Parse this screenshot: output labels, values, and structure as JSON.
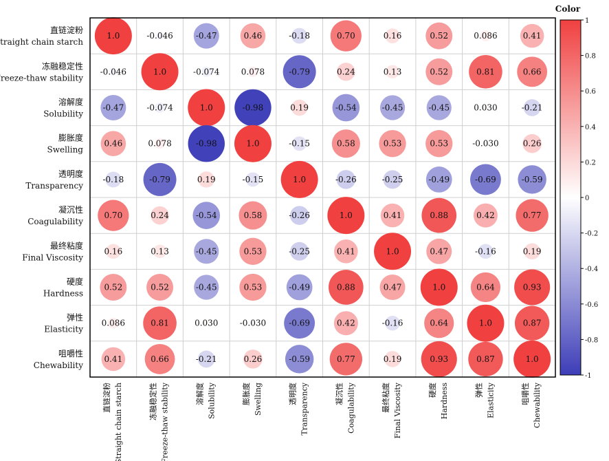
{
  "chart_data": {
    "type": "heatmap",
    "labels": [
      {
        "cn": "直链淀粉",
        "en": "Straight chain starch"
      },
      {
        "cn": "冻融稳定性",
        "en": "Freeze-thaw stability"
      },
      {
        "cn": "溶解度",
        "en": "Solubility"
      },
      {
        "cn": "膨胀度",
        "en": "Swelling"
      },
      {
        "cn": "透明度",
        "en": "Transparency"
      },
      {
        "cn": "凝沉性",
        "en": "Coagulability"
      },
      {
        "cn": "最终粘度",
        "en": "Final Viscosity"
      },
      {
        "cn": "硬度",
        "en": "Hardness"
      },
      {
        "cn": "弹性",
        "en": "Elasticity"
      },
      {
        "cn": "咀嚼性",
        "en": "Chewability"
      }
    ],
    "values": [
      [
        1.0,
        -0.046,
        -0.47,
        0.46,
        -0.18,
        0.7,
        0.16,
        0.52,
        0.086,
        0.41
      ],
      [
        -0.046,
        1.0,
        -0.074,
        0.078,
        -0.79,
        0.24,
        0.13,
        0.52,
        0.81,
        0.66
      ],
      [
        -0.47,
        -0.074,
        1.0,
        -0.98,
        0.19,
        -0.54,
        -0.45,
        -0.45,
        0.03,
        -0.21
      ],
      [
        0.46,
        0.078,
        -0.98,
        1.0,
        -0.15,
        0.58,
        0.53,
        0.53,
        -0.03,
        0.26
      ],
      [
        -0.18,
        -0.79,
        0.19,
        -0.15,
        1.0,
        -0.26,
        -0.25,
        -0.49,
        -0.69,
        -0.59
      ],
      [
        0.7,
        0.24,
        -0.54,
        0.58,
        -0.26,
        1.0,
        0.41,
        0.88,
        0.42,
        0.77
      ],
      [
        0.16,
        0.13,
        -0.45,
        0.53,
        -0.25,
        0.41,
        1.0,
        0.47,
        -0.16,
        0.19
      ],
      [
        0.52,
        0.52,
        -0.45,
        0.53,
        -0.49,
        0.88,
        0.47,
        1.0,
        0.64,
        0.93
      ],
      [
        0.086,
        0.81,
        0.03,
        -0.03,
        -0.69,
        0.42,
        -0.16,
        0.64,
        1.0,
        0.87
      ],
      [
        0.41,
        0.66,
        -0.21,
        0.26,
        -0.59,
        0.77,
        0.19,
        0.93,
        0.87,
        1.0
      ]
    ],
    "value_labels": [
      [
        "1.0",
        "-0.046",
        "-0.47",
        "0.46",
        "-0.18",
        "0.70",
        "0.16",
        "0.52",
        "0.086",
        "0.41"
      ],
      [
        "-0.046",
        "1.0",
        "-0.074",
        "0.078",
        "-0.79",
        "0.24",
        "0.13",
        "0.52",
        "0.81",
        "0.66"
      ],
      [
        "-0.47",
        "-0.074",
        "1.0",
        "-0.98",
        "0.19",
        "-0.54",
        "-0.45",
        "-0.45",
        "0.030",
        "-0.21"
      ],
      [
        "0.46",
        "0.078",
        "-0.98",
        "1.0",
        "-0.15",
        "0.58",
        "0.53",
        "0.53",
        "-0.030",
        "0.26"
      ],
      [
        "-0.18",
        "-0.79",
        "0.19",
        "-0.15",
        "1.0",
        "-0.26",
        "-0.25",
        "-0.49",
        "-0.69",
        "-0.59"
      ],
      [
        "0.70",
        "0.24",
        "-0.54",
        "0.58",
        "-0.26",
        "1.0",
        "0.41",
        "0.88",
        "0.42",
        "0.77"
      ],
      [
        "0.16",
        "0.13",
        "-0.45",
        "0.53",
        "-0.25",
        "0.41",
        "1.0",
        "0.47",
        "-0.16",
        "0.19"
      ],
      [
        "0.52",
        "0.52",
        "-0.45",
        "0.53",
        "-0.49",
        "0.88",
        "0.47",
        "1.0",
        "0.64",
        "0.93"
      ],
      [
        "0.086",
        "0.81",
        "0.030",
        "-0.030",
        "-0.69",
        "0.42",
        "-0.16",
        "0.64",
        "1.0",
        "0.87"
      ],
      [
        "0.41",
        "0.66",
        "-0.21",
        "0.26",
        "-0.59",
        "0.77",
        "0.19",
        "0.93",
        "0.87",
        "1.0"
      ]
    ],
    "colorbar": {
      "title": "Color",
      "range": [
        -1,
        1
      ],
      "ticks": [
        "1",
        "0.8",
        "0.6",
        "0.4",
        "0.2",
        "0",
        "-0.2",
        "-0.4",
        "-0.6",
        "-0.8",
        "-1"
      ],
      "tick_values": [
        1,
        0.8,
        0.6,
        0.4,
        0.2,
        0,
        -0.2,
        -0.4,
        -0.6,
        -0.8,
        -1
      ],
      "color_max": "#f04040",
      "color_mid": "#ffffff",
      "color_min": "#3d3db8"
    },
    "grid": true
  }
}
